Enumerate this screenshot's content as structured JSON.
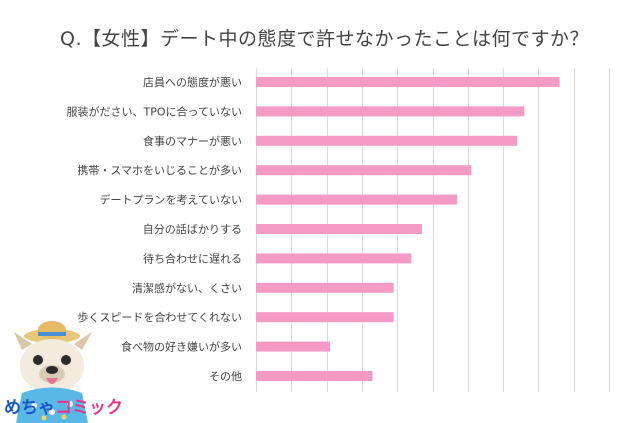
{
  "chart_data": {
    "type": "bar",
    "orientation": "horizontal",
    "title": "Q.【女性】デート中の態度で許せなかったことは何ですか？",
    "categories": [
      "店員への態度が悪い",
      "服装がださい、TPOに合っていない",
      "食事のマナーが悪い",
      "携帯・スマホをいじることが多い",
      "デートプランを考えていない",
      "自分の話ばかりする",
      "待ち合わせに遅れる",
      "清潔感がない、くさい",
      "歩くスピードを合わせてくれない",
      "食べ物の好き嫌いが多い",
      "その他"
    ],
    "values": [
      86,
      76,
      74,
      61,
      57,
      47,
      44,
      39,
      39,
      21,
      33
    ],
    "xlim": [
      0,
      100
    ],
    "gridlines": [
      0,
      10,
      20,
      30,
      40,
      50,
      60,
      70,
      80,
      90,
      100
    ],
    "grid": true,
    "bar_color": "#f49ac5",
    "grid_color": "#dcdcdc"
  },
  "logo": {
    "part1": "めちゃ",
    "part2": "コミック",
    "color1": "#1a56c4",
    "color2": "#e8328a"
  }
}
